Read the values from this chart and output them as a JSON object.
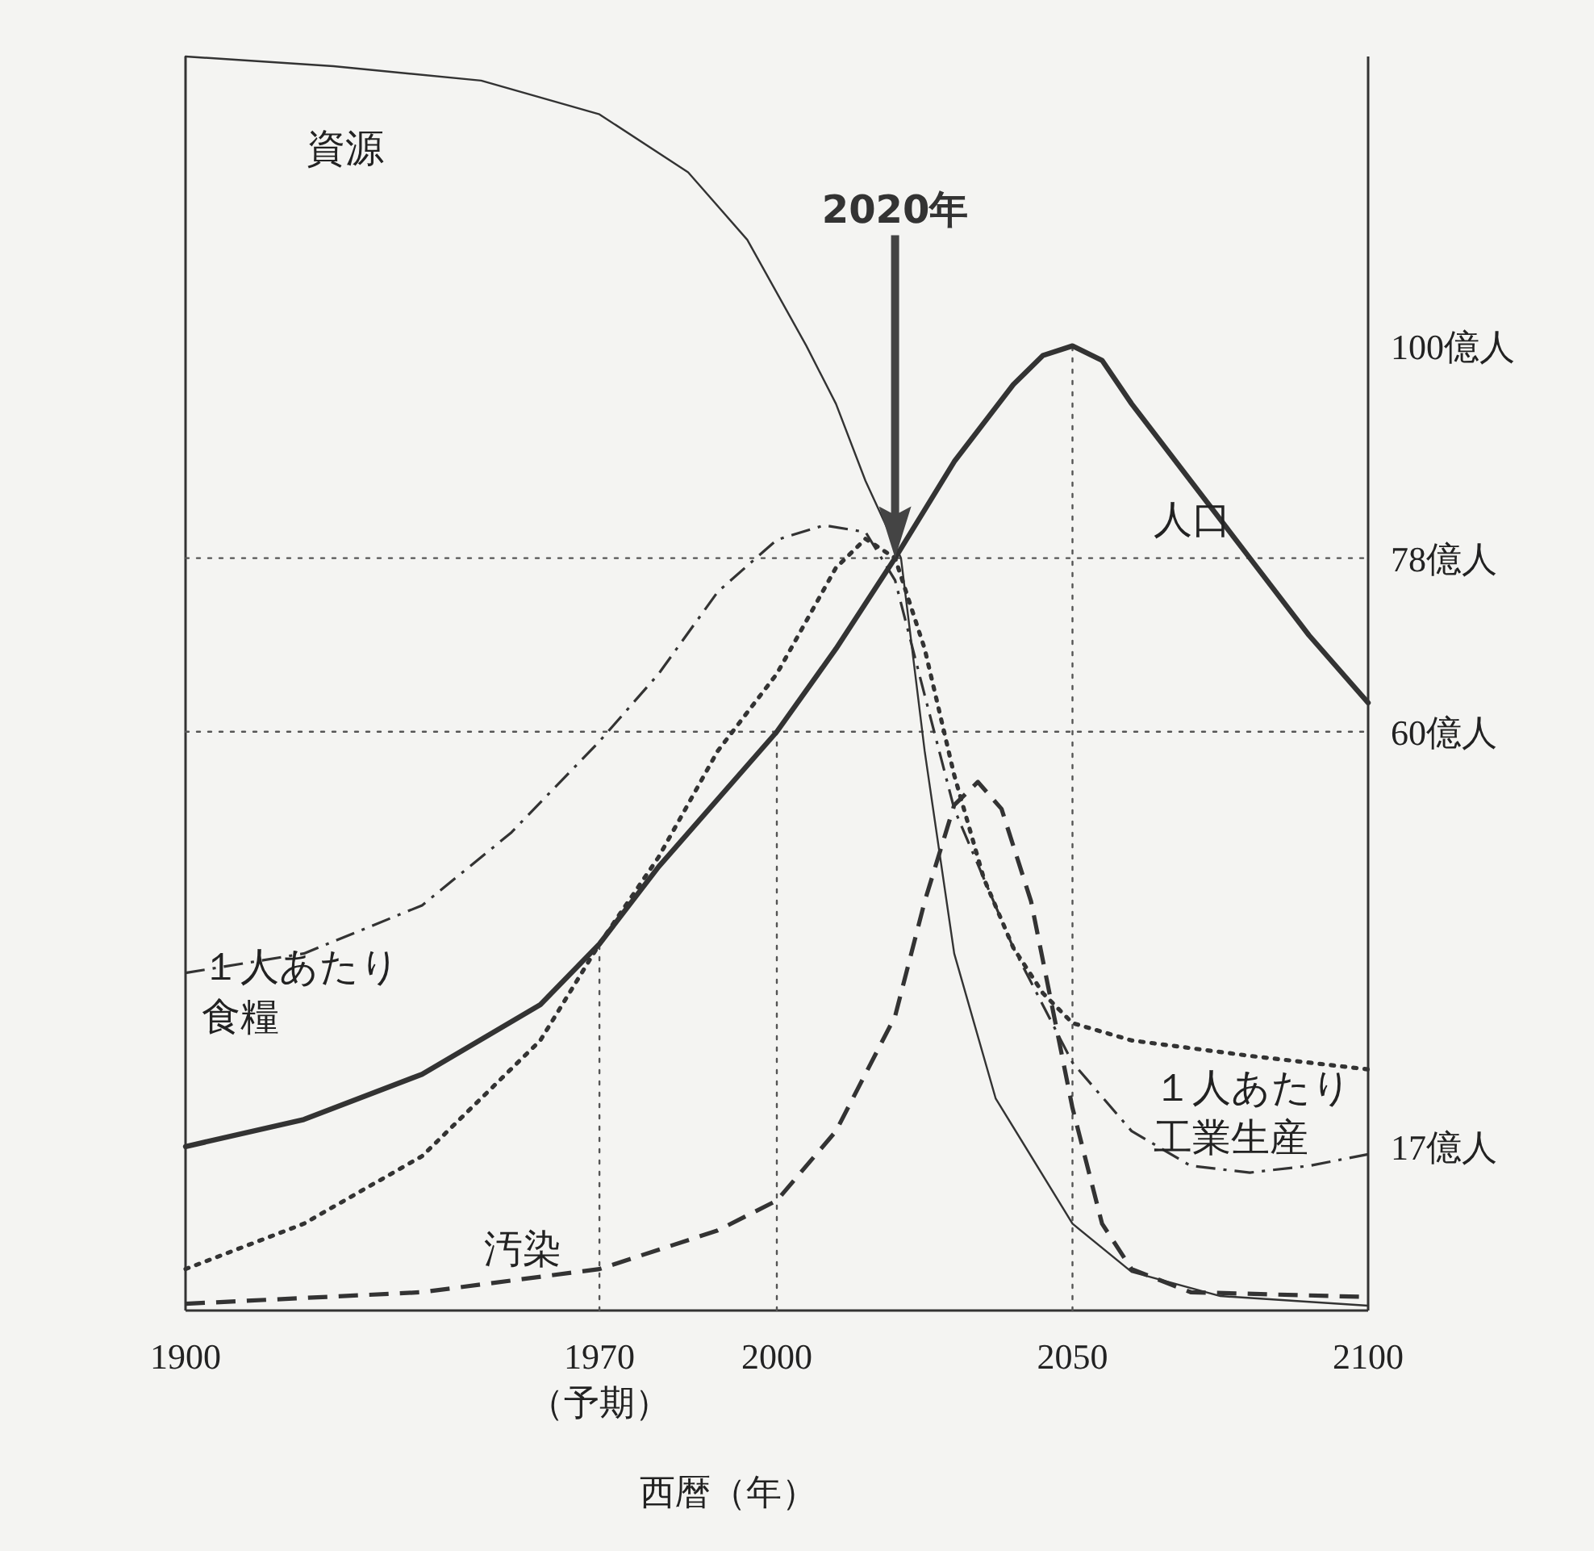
{
  "chart_data": {
    "type": "line",
    "xlabel": "西暦（年）",
    "xlim": [
      1900,
      2100
    ],
    "xticks": [
      1900,
      {
        "value": 1970,
        "label": "1970\n（予期）"
      },
      2000,
      2050,
      2100
    ],
    "ylim": [
      0,
      130
    ],
    "yticks": [
      {
        "value": 17,
        "label": "17億人"
      },
      {
        "value": 60,
        "label": "60億人"
      },
      {
        "value": 78,
        "label": "78億人"
      },
      {
        "value": 100,
        "label": "100億人"
      }
    ],
    "series": [
      {
        "name": "人口",
        "color": "#333333",
        "line_style": "solid",
        "x": [
          1900,
          1920,
          1940,
          1960,
          1970,
          1980,
          2000,
          2010,
          2020,
          2030,
          2040,
          2045,
          2050,
          2055,
          2060,
          2070,
          2080,
          2090,
          2100
        ],
        "values": [
          17,
          19.8,
          24.5,
          31.7,
          38,
          46,
          60,
          68.6,
          78,
          88,
          96,
          99,
          100,
          98.5,
          94,
          86,
          78,
          70,
          63
        ]
      },
      {
        "name": "資源",
        "color": "#333333",
        "line_style": "solid",
        "x": [
          1900,
          1925,
          1950,
          1970,
          1985,
          1995,
          2005,
          2010,
          2015,
          2021,
          2025,
          2030,
          2037,
          2050,
          2060,
          2075,
          2100
        ],
        "values": [
          130,
          129,
          127.5,
          124,
          118,
          111,
          100,
          94,
          86,
          78,
          58,
          37,
          22,
          9,
          4,
          1.5,
          0.5
        ]
      },
      {
        "name": "１人あたり食糧",
        "color": "#333333",
        "line_style": "dashdot",
        "x": [
          1900,
          1920,
          1940,
          1955,
          1970,
          1980,
          1990,
          2000,
          2008,
          2015,
          2020,
          2025,
          2030,
          2040,
          2050,
          2060,
          2070,
          2080,
          2090,
          2100
        ],
        "values": [
          35,
          37,
          42,
          49.5,
          59,
          66,
          74.5,
          79.9,
          81.4,
          80.7,
          75.7,
          63.8,
          52,
          37.6,
          25.7,
          18.6,
          15,
          14.3,
          15,
          16.2
        ]
      },
      {
        "name": "１人あたり工業生産",
        "color": "#333333",
        "line_style": "dotted",
        "x": [
          1900,
          1920,
          1940,
          1960,
          1970,
          1980,
          1990,
          2000,
          2010,
          2015,
          2020,
          2025,
          2030,
          2035,
          2040,
          2045,
          2050,
          2060,
          2080,
          2100
        ],
        "values": [
          4.3,
          9,
          16,
          28,
          38,
          47,
          58,
          66,
          77,
          80,
          78,
          68.6,
          55.5,
          44.8,
          37.6,
          32.9,
          29.8,
          28,
          26.4,
          25
        ]
      },
      {
        "name": "汚染",
        "color": "#333333",
        "line_style": "dashed",
        "x": [
          1900,
          1940,
          1970,
          1990,
          2000,
          2010,
          2020,
          2025,
          2030,
          2034,
          2038,
          2043,
          2050,
          2055,
          2060,
          2070,
          2100
        ],
        "values": [
          0.7,
          1.9,
          4.3,
          8.3,
          11.4,
          18.6,
          30.5,
          42.4,
          52.4,
          54.8,
          52,
          42.4,
          21,
          9,
          4.3,
          1.9,
          1.4
        ]
      }
    ],
    "ref_lines": [
      {
        "axis": "y",
        "value": 60,
        "line_style": "dotted"
      },
      {
        "axis": "y",
        "value": 78,
        "line_style": "dotted"
      },
      {
        "axis": "x",
        "value": 1970,
        "line_style": "dotted"
      },
      {
        "axis": "x",
        "value": 2000,
        "line_style": "dotted"
      },
      {
        "axis": "x",
        "value": 2050,
        "line_style": "dotted"
      }
    ],
    "annotations": [
      "2020年"
    ]
  }
}
